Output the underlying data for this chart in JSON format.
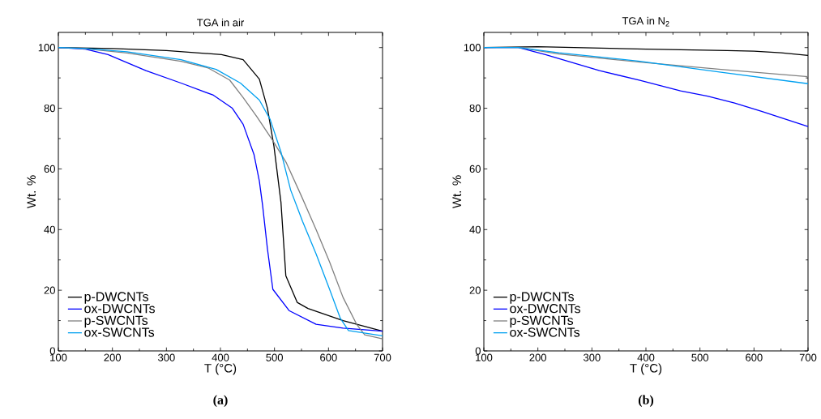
{
  "chart_data": [
    {
      "type": "line",
      "title": "TGA in air",
      "xlabel": "T (°C)",
      "ylabel": "Wt. %",
      "xlim": [
        100,
        700
      ],
      "ylim": [
        0,
        105
      ],
      "xticks": [
        100,
        200,
        300,
        400,
        500,
        600,
        700
      ],
      "yticks": [
        0,
        20,
        40,
        60,
        80,
        100
      ],
      "legend": "bottom left",
      "annotations": [
        "(a)"
      ],
      "series": [
        {
          "name": "p-DWCNTs",
          "color": "#000000",
          "x": [
            100,
            200,
            300,
            402,
            442,
            472,
            487,
            499,
            512,
            521,
            542,
            562,
            627,
            700
          ],
          "values": [
            100,
            99.7,
            99,
            97.7,
            96,
            89.6,
            80,
            67.5,
            49,
            24.8,
            16,
            14,
            10,
            6.5
          ]
        },
        {
          "name": "ox-DWCNTs",
          "color": "#0000ff",
          "x": [
            100,
            150,
            192,
            262,
            327,
            387,
            422,
            442,
            462,
            472,
            478,
            487,
            497,
            527,
            577,
            627,
            700
          ],
          "values": [
            100,
            99.5,
            97.7,
            92.4,
            88.3,
            84.3,
            80,
            74.7,
            64.8,
            56,
            48,
            33.6,
            20.3,
            13.3,
            8.8,
            7.5,
            6.5
          ]
        },
        {
          "name": "p-SWCNTs",
          "color": "#808080",
          "x": [
            100,
            150,
            227,
            327,
            377,
            417,
            442,
            467,
            497,
            522,
            550,
            577,
            602,
            627,
            652,
            667,
            700
          ],
          "values": [
            100,
            99.6,
            98.2,
            95.5,
            93.3,
            89.3,
            83.5,
            77.3,
            69.3,
            62,
            51,
            40,
            29.3,
            17.6,
            8.8,
            5.3,
            4
          ]
        },
        {
          "name": "ox-SWCNTs",
          "color": "#00a0f0",
          "x": [
            100,
            150,
            227,
            327,
            392,
            437,
            472,
            492,
            512,
            530,
            552,
            577,
            602,
            622,
            637,
            700
          ],
          "values": [
            100,
            99.7,
            98.6,
            96,
            92.8,
            88.3,
            82.7,
            76.3,
            65.6,
            53,
            42.7,
            32,
            20.3,
            10.7,
            6.7,
            5
          ]
        }
      ]
    },
    {
      "type": "line",
      "title": "TGA in N$_{2}$",
      "xlabel": "T (°C)",
      "ylabel": "Wt. %",
      "xlim": [
        100,
        700
      ],
      "ylim": [
        0,
        105
      ],
      "xticks": [
        100,
        200,
        300,
        400,
        500,
        600,
        700
      ],
      "yticks": [
        0,
        20,
        40,
        60,
        80,
        100
      ],
      "legend": "bottom left",
      "annotations": [
        "(b)"
      ],
      "series": [
        {
          "name": "p-DWCNTs",
          "color": "#000000",
          "x": [
            100,
            200,
            400,
            550,
            600,
            650,
            700
          ],
          "values": [
            100,
            100.3,
            99.5,
            99,
            98.8,
            98.3,
            97.4
          ]
        },
        {
          "name": "ox-DWCNTs",
          "color": "#0000ff",
          "x": [
            100,
            164,
            214,
            314,
            389,
            464,
            514,
            564,
            614,
            700
          ],
          "values": [
            100,
            100,
            97.7,
            92.4,
            89.2,
            85.7,
            84,
            81.7,
            79,
            74
          ]
        },
        {
          "name": "p-SWCNTs",
          "color": "#808080",
          "x": [
            100,
            164,
            239,
            389,
            539,
            700
          ],
          "values": [
            100,
            100,
            97.9,
            95.2,
            92.8,
            90.4
          ]
        },
        {
          "name": "ox-SWCNTs",
          "color": "#00a0f0",
          "x": [
            100,
            164,
            239,
            389,
            539,
            700
          ],
          "values": [
            100,
            100,
            98.3,
            95.5,
            91.9,
            88.1
          ]
        }
      ]
    }
  ]
}
